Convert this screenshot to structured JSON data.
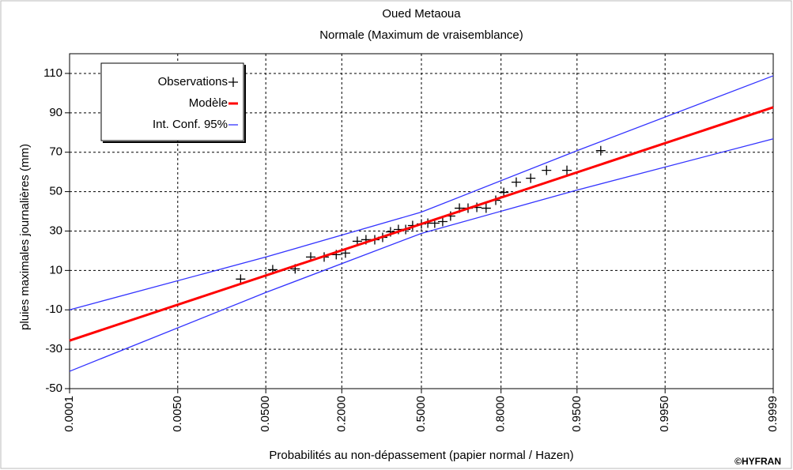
{
  "chart_data": {
    "type": "probability-plot",
    "title": "Oued Metaoua",
    "subtitle": "Normale (Maximum de vraisemblance)",
    "x_label": "Probabilités au non-dépassement (papier normal / Hazen)",
    "y_label": "pluies maximales journalières  (mm)",
    "credit": "©HYFRAN",
    "xscale": "normal-probability",
    "xlim": [
      0.0001,
      0.9999
    ],
    "xticks": [
      {
        "value": 0.0001,
        "label": "0.0001"
      },
      {
        "value": 0.005,
        "label": "0.0050"
      },
      {
        "value": 0.05,
        "label": "0.0500"
      },
      {
        "value": 0.2,
        "label": "0.2000"
      },
      {
        "value": 0.5,
        "label": "0.5000"
      },
      {
        "value": 0.8,
        "label": "0.8000"
      },
      {
        "value": 0.95,
        "label": "0.9500"
      },
      {
        "value": 0.995,
        "label": "0.9950"
      },
      {
        "value": 0.9999,
        "label": "0.9999"
      }
    ],
    "ylim": [
      -50,
      120
    ],
    "yticks": [
      -50,
      -30,
      -10,
      10,
      30,
      50,
      70,
      90,
      110
    ],
    "grid": true,
    "legend": "top-left",
    "series": [
      {
        "name": "Observations",
        "kind": "scatter",
        "color": "#000000",
        "x": [
          0.028,
          0.058,
          0.091,
          0.121,
          0.152,
          0.184,
          0.211,
          0.249,
          0.279,
          0.311,
          0.341,
          0.372,
          0.404,
          0.434,
          0.463,
          0.5,
          0.527,
          0.556,
          0.589,
          0.621,
          0.656,
          0.689,
          0.721,
          0.753,
          0.784,
          0.808,
          0.842,
          0.876,
          0.907,
          0.938,
          0.971
        ],
        "values": [
          5.6,
          10.4,
          10.8,
          16.8,
          16.8,
          18,
          18.8,
          24.8,
          25.6,
          25.6,
          26.8,
          29.6,
          30.8,
          30.8,
          32.8,
          33.6,
          34,
          34,
          34.8,
          37.6,
          41.6,
          41.6,
          42,
          41.6,
          45.6,
          49.6,
          54.8,
          56.8,
          60.8,
          60.8,
          70.8
        ]
      },
      {
        "name": "Modèle",
        "kind": "line",
        "color": "#ff0000",
        "x": [
          0.0001,
          0.9999
        ],
        "values": [
          -25.6,
          92.8
        ]
      },
      {
        "name": "Int. Conf. 95%",
        "kind": "band",
        "color": "#3333ff",
        "x": [
          0.0001,
          0.05,
          0.5,
          0.95,
          0.9999
        ],
        "values": [
          -10,
          16.8,
          39.6,
          70.8,
          108.8
        ],
        "lower": [
          -41.2,
          -1.2,
          28.8,
          50.8,
          76.8
        ]
      }
    ]
  }
}
